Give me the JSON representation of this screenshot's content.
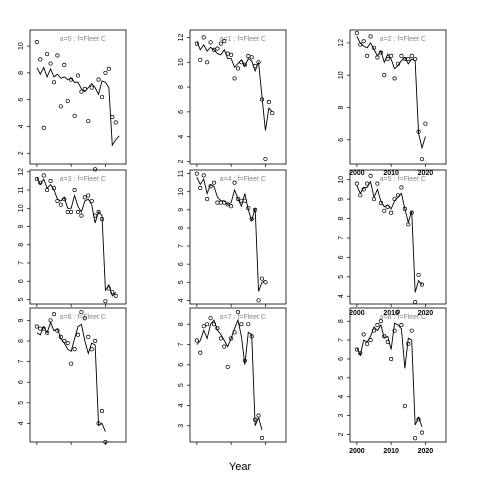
{
  "figure": {
    "xlabel": "Year"
  },
  "chart_data": [
    {
      "type": "scatter",
      "panel_label": "a=0  :  f=Fleet C",
      "x": [
        2000,
        2001,
        2002,
        2003,
        2004,
        2005,
        2006,
        2007,
        2008,
        2009,
        2010,
        2011,
        2012,
        2013,
        2014,
        2015,
        2016,
        2017,
        2018,
        2019,
        2020,
        2021,
        2022,
        2023,
        2024
      ],
      "points": [
        10.3,
        9.0,
        3.9,
        9.4,
        8.7,
        7.3,
        9.3,
        5.5,
        8.6,
        5.9,
        7.5,
        4.8,
        7.8,
        6.6,
        6.8,
        4.4,
        6.9,
        0.8,
        7.5,
        6.2,
        8.0,
        8.3,
        4.7,
        4.3,
        null
      ],
      "fit": [
        8.4,
        7.9,
        8.4,
        7.7,
        8.3,
        7.7,
        7.9,
        7.6,
        7.7,
        7.5,
        7.6,
        7.3,
        7.3,
        6.8,
        6.6,
        6.9,
        7.2,
        6.9,
        6.4,
        7.4,
        7.3,
        6.9,
        2.6,
        3.0,
        3.3
      ],
      "xlim": [
        1998,
        2026
      ],
      "ylim": [
        1.2,
        11.2
      ],
      "yticks": [
        2,
        4,
        6,
        8,
        10
      ],
      "xticks": []
    },
    {
      "type": "scatter",
      "panel_label": "a=3  :  f=Fleet C",
      "x": [
        2000,
        2001,
        2002,
        2003,
        2004,
        2005,
        2006,
        2007,
        2008,
        2009,
        2010,
        2011,
        2012,
        2013,
        2014,
        2015,
        2016,
        2017,
        2018,
        2019,
        2020,
        2021,
        2022,
        2023,
        2024
      ],
      "points": [
        11.6,
        11.4,
        11.8,
        11.0,
        11.5,
        11.1,
        10.4,
        10.2,
        10.5,
        9.8,
        9.8,
        11.0,
        9.8,
        9.6,
        10.6,
        10.7,
        10.4,
        9.6,
        9.8,
        9.4,
        4.9,
        5.6,
        5.4,
        5.2,
        null
      ],
      "fit": [
        11.7,
        11.3,
        11.6,
        11.1,
        11.3,
        11.0,
        10.5,
        10.4,
        10.6,
        10.0,
        10.0,
        10.7,
        10.1,
        9.8,
        10.4,
        10.5,
        10.2,
        9.2,
        9.8,
        9.6,
        5.5,
        5.8,
        5.2,
        5.4,
        null
      ],
      "xlim": [
        1998,
        2026
      ],
      "ylim": [
        4.75,
        12.1
      ],
      "yticks": [
        5,
        6,
        7,
        8,
        9,
        10,
        11,
        12
      ],
      "xticks": []
    },
    {
      "type": "scatter",
      "panel_label": "a=6  :  f=Fleet C",
      "x": [
        2000,
        2001,
        2002,
        2003,
        2004,
        2005,
        2006,
        2007,
        2008,
        2009,
        2010,
        2011,
        2012,
        2013,
        2014,
        2015,
        2016,
        2017,
        2018,
        2019,
        2020,
        2021,
        2022,
        2023,
        2024
      ],
      "points": [
        8.7,
        8.6,
        8.6,
        8.4,
        9.0,
        9.3,
        8.5,
        8.2,
        8.0,
        7.9,
        6.9,
        7.6,
        8.3,
        9.4,
        9.1,
        8.2,
        7.6,
        8.0,
        4.0,
        4.6,
        3.1,
        null,
        null,
        null,
        null
      ],
      "fit": [
        8.4,
        8.3,
        8.7,
        8.4,
        8.9,
        8.5,
        8.6,
        8.1,
        7.9,
        7.6,
        7.5,
        8.1,
        8.7,
        8.8,
        8.0,
        7.4,
        7.9,
        7.8,
        3.9,
        4.0,
        3.6,
        null,
        null,
        null,
        null
      ],
      "xlim": [
        1998,
        2026
      ],
      "ylim": [
        3.1,
        9.6
      ],
      "yticks": [
        4,
        5,
        6,
        7,
        8,
        9
      ],
      "xticks": []
    },
    {
      "type": "scatter",
      "panel_label": "a=1  :  f=Fleet C",
      "x": [
        2000,
        2001,
        2002,
        2003,
        2004,
        2005,
        2006,
        2007,
        2008,
        2009,
        2010,
        2011,
        2012,
        2013,
        2014,
        2015,
        2016,
        2017,
        2018,
        2019,
        2020,
        2021,
        2022,
        2023,
        2024
      ],
      "points": [
        11.5,
        10.2,
        12.0,
        10.0,
        11.6,
        11.0,
        11.1,
        11.5,
        11.7,
        10.7,
        10.6,
        8.7,
        9.5,
        10.0,
        9.8,
        10.5,
        10.4,
        9.7,
        10.0,
        7.0,
        2.2,
        6.8,
        5.9,
        null,
        null
      ],
      "fit": [
        11.7,
        11.0,
        11.4,
        10.9,
        11.2,
        11.0,
        10.7,
        10.6,
        11.0,
        10.3,
        10.3,
        9.6,
        9.9,
        10.2,
        9.7,
        10.3,
        10.1,
        9.3,
        10.0,
        7.2,
        4.5,
        6.3,
        6.0,
        null,
        null
      ],
      "xlim": [
        1998,
        2026
      ],
      "ylim": [
        1.8,
        12.6
      ],
      "yticks": [
        2,
        4,
        6,
        8,
        10,
        12
      ],
      "xticks": []
    },
    {
      "type": "scatter",
      "panel_label": "a=4  :  f=Fleet C",
      "x": [
        2000,
        2001,
        2002,
        2003,
        2004,
        2005,
        2006,
        2007,
        2008,
        2009,
        2010,
        2011,
        2012,
        2013,
        2014,
        2015,
        2016,
        2017,
        2018,
        2019,
        2020,
        2021,
        2022,
        2023,
        2024
      ],
      "points": [
        11.0,
        10.2,
        10.9,
        9.6,
        10.3,
        10.5,
        9.4,
        9.4,
        9.4,
        9.3,
        9.2,
        10.5,
        9.6,
        9.5,
        9.5,
        9.1,
        8.5,
        9.0,
        4.0,
        5.2,
        5.0,
        null,
        null,
        null,
        null
      ],
      "fit": [
        10.8,
        10.4,
        10.7,
        9.9,
        10.4,
        10.3,
        9.7,
        9.5,
        9.5,
        9.3,
        9.4,
        10.1,
        9.6,
        9.2,
        9.9,
        9.0,
        8.4,
        9.1,
        4.5,
        5.0,
        5.1,
        null,
        null,
        null,
        null
      ],
      "xlim": [
        1998,
        2026
      ],
      "ylim": [
        3.8,
        11.2
      ],
      "yticks": [
        4,
        5,
        6,
        7,
        8,
        9,
        10,
        11
      ],
      "xticks": []
    },
    {
      "type": "scatter",
      "panel_label": "a=7  :  f=Fleet C",
      "x": [
        2000,
        2001,
        2002,
        2003,
        2004,
        2005,
        2006,
        2007,
        2008,
        2009,
        2010,
        2011,
        2012,
        2013,
        2014,
        2015,
        2016,
        2017,
        2018,
        2019,
        2020,
        2021,
        2022,
        2023,
        2024
      ],
      "points": [
        7.2,
        6.6,
        7.9,
        8.0,
        8.3,
        8.0,
        7.8,
        7.3,
        6.9,
        5.9,
        7.3,
        7.6,
        8.6,
        8.0,
        6.2,
        8.0,
        7.4,
        3.3,
        3.5,
        2.4,
        null,
        null,
        null,
        null,
        null
      ],
      "fit": [
        7.0,
        7.2,
        7.7,
        7.3,
        8.0,
        8.2,
        7.7,
        7.5,
        7.2,
        6.9,
        7.3,
        7.8,
        8.2,
        7.4,
        6.0,
        7.6,
        7.5,
        3.0,
        3.4,
        2.8,
        null,
        null,
        null,
        null,
        null
      ],
      "xlim": [
        1998,
        2026
      ],
      "ylim": [
        2.2,
        8.8
      ],
      "yticks": [
        3,
        4,
        5,
        6,
        7,
        8
      ],
      "xticks": []
    },
    {
      "type": "scatter",
      "panel_label": "a=2  :  f=Fleet C",
      "x": [
        2000,
        2001,
        2002,
        2003,
        2004,
        2005,
        2006,
        2007,
        2008,
        2009,
        2010,
        2011,
        2012,
        2013,
        2014,
        2015,
        2016,
        2017,
        2018,
        2019,
        2020,
        2021,
        2022,
        2023,
        2024
      ],
      "points": [
        12.6,
        11.9,
        12.1,
        11.2,
        12.4,
        11.7,
        11.1,
        11.4,
        10.0,
        11.0,
        11.2,
        9.8,
        10.7,
        11.2,
        11.0,
        11.0,
        11.2,
        11.0,
        6.5,
        4.8,
        7.0,
        null,
        null,
        null,
        null
      ],
      "fit": [
        12.4,
        12.0,
        11.8,
        11.7,
        12.0,
        11.6,
        11.2,
        11.5,
        10.8,
        11.3,
        11.0,
        10.4,
        10.6,
        10.9,
        11.1,
        10.7,
        11.0,
        10.9,
        6.4,
        5.5,
        6.2,
        null,
        null,
        null,
        null
      ],
      "xlim": [
        1998,
        2026
      ],
      "ylim": [
        4.5,
        12.8
      ],
      "yticks": [
        6,
        8,
        10,
        12
      ],
      "xticks": [
        2000,
        2010,
        2020
      ]
    },
    {
      "type": "scatter",
      "panel_label": "a=5  :  f=Fleet C",
      "x": [
        2000,
        2001,
        2002,
        2003,
        2004,
        2005,
        2006,
        2007,
        2008,
        2009,
        2010,
        2011,
        2012,
        2013,
        2014,
        2015,
        2016,
        2017,
        2018,
        2019,
        2020,
        2021,
        2022,
        2023,
        2024
      ],
      "points": [
        9.8,
        9.2,
        9.5,
        9.8,
        10.2,
        9.0,
        9.8,
        8.8,
        8.4,
        8.6,
        8.3,
        9.0,
        9.2,
        9.6,
        8.5,
        7.7,
        8.3,
        3.7,
        5.1,
        4.6,
        null,
        null,
        null,
        null,
        null
      ],
      "fit": [
        9.7,
        9.3,
        9.6,
        9.6,
        9.9,
        9.1,
        9.5,
        8.9,
        8.6,
        8.7,
        8.5,
        8.9,
        9.1,
        9.3,
        8.5,
        7.8,
        8.4,
        4.2,
        4.8,
        4.6,
        null,
        null,
        null,
        null,
        null
      ],
      "xlim": [
        1998,
        2026
      ],
      "ylim": [
        3.6,
        10.5
      ],
      "yticks": [
        4,
        5,
        6,
        7,
        8,
        9,
        10
      ],
      "xticks": [
        2000,
        2010,
        2020
      ]
    },
    {
      "type": "scatter",
      "panel_label": "a=8  :  f=Fleet C",
      "x": [
        2000,
        2001,
        2002,
        2003,
        2004,
        2005,
        2006,
        2007,
        2008,
        2009,
        2010,
        2011,
        2012,
        2013,
        2014,
        2015,
        2016,
        2017,
        2018,
        2019,
        2020,
        2021,
        2022,
        2023,
        2024
      ],
      "points": [
        6.5,
        6.3,
        7.3,
        6.8,
        7.0,
        7.5,
        7.8,
        8.0,
        7.2,
        6.9,
        6.0,
        7.5,
        8.5,
        7.8,
        3.5,
        6.8,
        7.5,
        1.8,
        2.8,
        2.1,
        null,
        null,
        null,
        null,
        null
      ],
      "fit": [
        6.6,
        6.2,
        7.0,
        6.9,
        7.2,
        7.7,
        7.5,
        7.8,
        7.1,
        7.2,
        6.5,
        7.9,
        7.8,
        7.6,
        5.5,
        7.1,
        7.0,
        2.5,
        2.9,
        2.4,
        null,
        null,
        null,
        null,
        null
      ],
      "xlim": [
        1998,
        2026
      ],
      "ylim": [
        1.6,
        8.7
      ],
      "yticks": [
        2,
        3,
        4,
        5,
        6,
        7,
        8
      ],
      "xticks": [
        2000,
        2010,
        2020
      ]
    }
  ]
}
